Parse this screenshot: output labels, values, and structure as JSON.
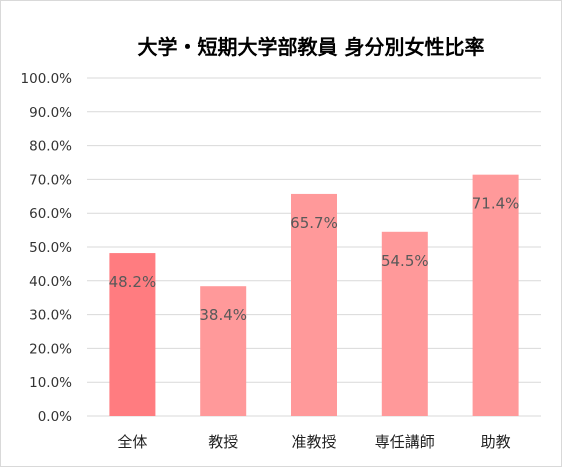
{
  "chart_data": {
    "type": "bar",
    "title": "大学・短期大学部教員 身分別女性比率",
    "categories": [
      "全体",
      "教授",
      "准教授",
      "専任講師",
      "助教"
    ],
    "values": [
      48.2,
      38.4,
      65.7,
      54.5,
      71.4
    ],
    "data_labels": [
      "48.2%",
      "38.4%",
      "65.7%",
      "54.5%",
      "71.4%"
    ],
    "y_ticks": [
      "0.0%",
      "10.0%",
      "20.0%",
      "30.0%",
      "40.0%",
      "50.0%",
      "60.0%",
      "70.0%",
      "80.0%",
      "90.0%",
      "100.0%"
    ],
    "ylim": [
      0,
      100
    ],
    "grid": true,
    "legend": "none",
    "colors": {
      "highlight_bar": "#ff7c80",
      "bar": "#ff999a",
      "gridline": "#d9d9d9",
      "data_label": "#595959"
    }
  }
}
